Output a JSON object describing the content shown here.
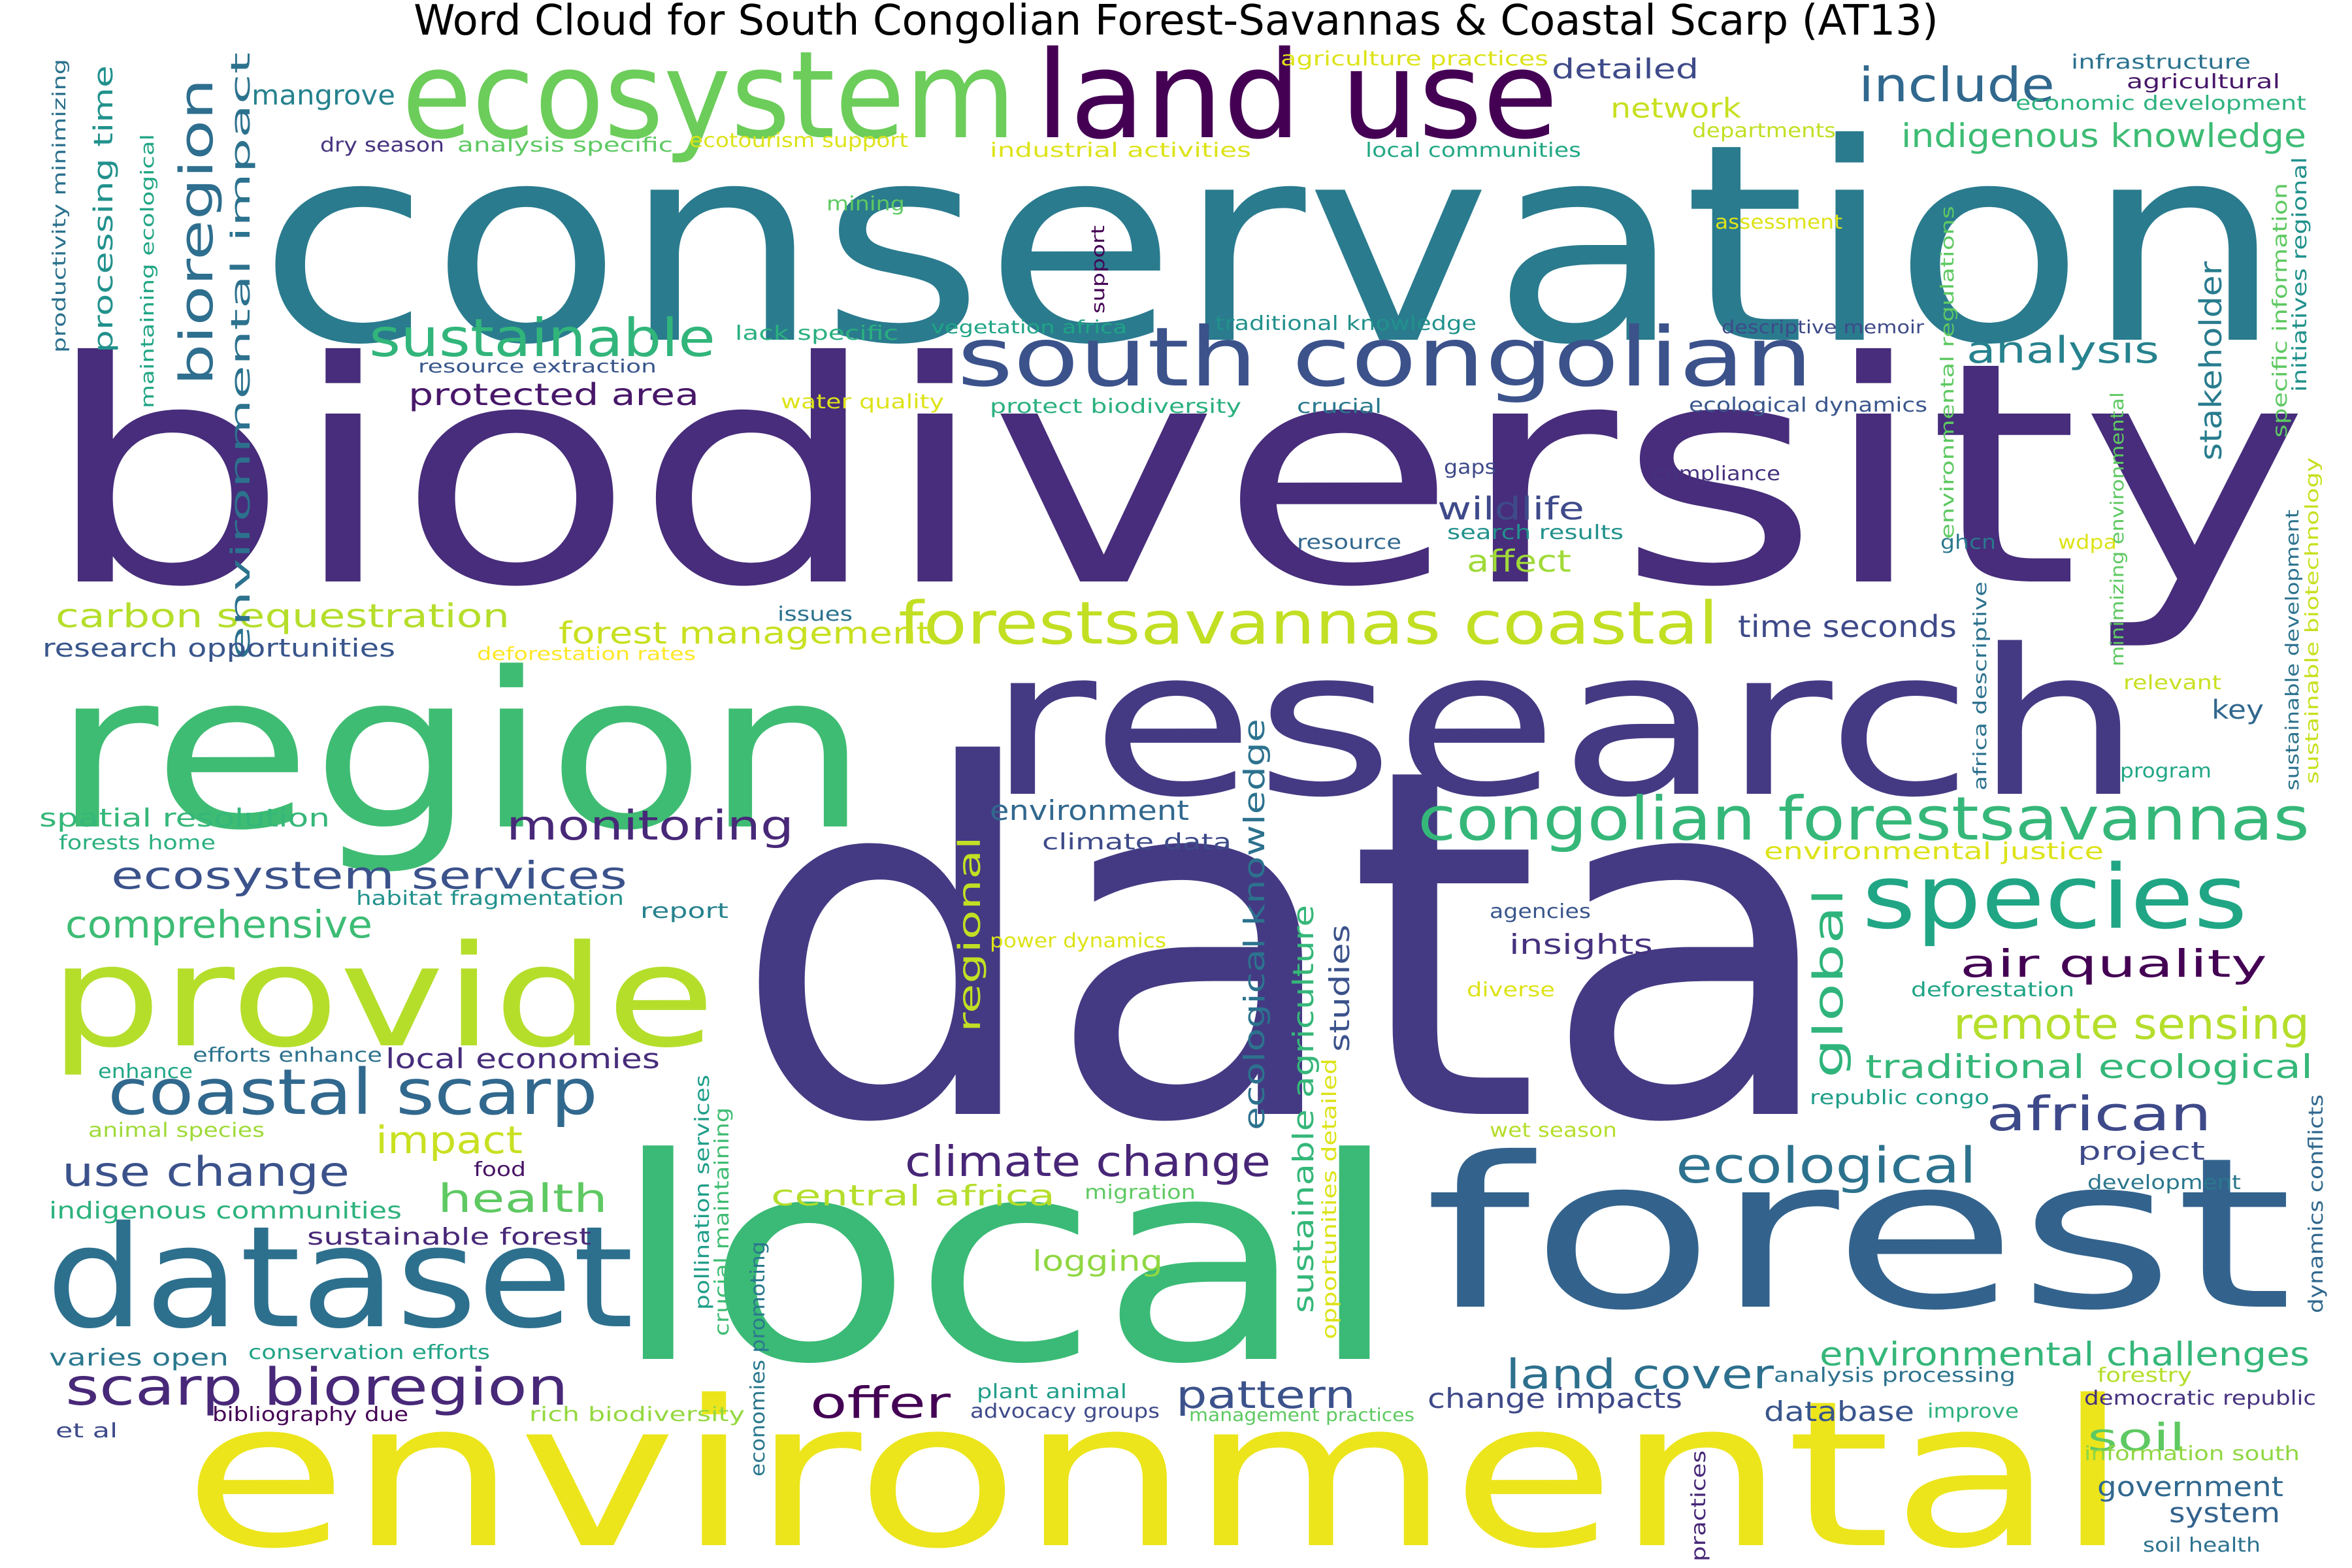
{
  "title": "Word Cloud for South Congolian Forest-Savannas & Coastal Scarp (AT13)",
  "words": [
    {
      "text": "conservation",
      "color": "#2a7b8e"
    },
    {
      "text": "biodiversity",
      "color": "#472d7b"
    },
    {
      "text": "data",
      "color": "#443a83"
    },
    {
      "text": "region",
      "color": "#3fbc73"
    },
    {
      "text": "research",
      "color": "#443a83"
    },
    {
      "text": "local",
      "color": "#3aba76"
    },
    {
      "text": "forest",
      "color": "#33638d"
    },
    {
      "text": "environmental",
      "color": "#ece51b"
    },
    {
      "text": "ecosystem",
      "color": "#6ccd5a"
    },
    {
      "text": "land use",
      "color": "#440154"
    },
    {
      "text": "provide",
      "color": "#b5de2b"
    },
    {
      "text": "dataset",
      "color": "#2d708e"
    },
    {
      "text": "south congolian",
      "color": "#3b528b"
    },
    {
      "text": "species",
      "color": "#21a685"
    },
    {
      "text": "forestsavannas coastal",
      "color": "#c2df23"
    },
    {
      "text": "congolian forestsavannas",
      "color": "#35b779"
    },
    {
      "text": "coastal scarp",
      "color": "#31688e"
    },
    {
      "text": "scarp bioregion",
      "color": "#482878"
    },
    {
      "text": "bioregion",
      "color": "#2e6e8e"
    },
    {
      "text": "sustainable",
      "color": "#31b57b"
    },
    {
      "text": "include",
      "color": "#31688e"
    },
    {
      "text": "ecological",
      "color": "#2c728e"
    },
    {
      "text": "african",
      "color": "#3e4989"
    },
    {
      "text": "remote sensing",
      "color": "#b5de2b"
    },
    {
      "text": "climate change",
      "color": "#482677"
    },
    {
      "text": "monitoring",
      "color": "#482878"
    },
    {
      "text": "ecosystem services",
      "color": "#3b528b"
    },
    {
      "text": "comprehensive",
      "color": "#3dbc74"
    },
    {
      "text": "use change",
      "color": "#3b528b"
    },
    {
      "text": "land cover",
      "color": "#2d708e"
    },
    {
      "text": "environmental challenges",
      "color": "#35b779"
    },
    {
      "text": "offer",
      "color": "#440154"
    },
    {
      "text": "pattern",
      "color": "#3b528b"
    },
    {
      "text": "air quality",
      "color": "#440154"
    },
    {
      "text": "traditional ecological",
      "color": "#35b779"
    },
    {
      "text": "global",
      "color": "#2fb47c"
    },
    {
      "text": "health",
      "color": "#5ec962"
    },
    {
      "text": "impact",
      "color": "#c8e020"
    },
    {
      "text": "soil",
      "color": "#5ec962"
    },
    {
      "text": "government",
      "color": "#31688e"
    },
    {
      "text": "system",
      "color": "#33638d"
    },
    {
      "text": "indigenous knowledge",
      "color": "#3dbc74"
    },
    {
      "text": "analysis",
      "color": "#26828e"
    },
    {
      "text": "stakeholder",
      "color": "#287c8e"
    },
    {
      "text": "carbon sequestration",
      "color": "#b5de2b"
    },
    {
      "text": "forest management",
      "color": "#c8e020"
    },
    {
      "text": "protected area",
      "color": "#481769"
    },
    {
      "text": "wildlife",
      "color": "#3e4a89"
    },
    {
      "text": "affect",
      "color": "#a0da39"
    },
    {
      "text": "time seconds",
      "color": "#3e4a89"
    },
    {
      "text": "processing time",
      "color": "#21918c"
    },
    {
      "text": "environmental impact",
      "color": "#2c728e"
    },
    {
      "text": "mangrove",
      "color": "#26828e"
    },
    {
      "text": "detailed",
      "color": "#3e4a89"
    },
    {
      "text": "network",
      "color": "#c8e020"
    },
    {
      "text": "ecological knowledge",
      "color": "#2c728e"
    },
    {
      "text": "sustainable agriculture",
      "color": "#35b779"
    },
    {
      "text": "studies",
      "color": "#3b528b"
    },
    {
      "text": "regional",
      "color": "#c2df23"
    },
    {
      "text": "environment",
      "color": "#31688e"
    },
    {
      "text": "insights",
      "color": "#46327e"
    },
    {
      "text": "local economies",
      "color": "#472d7b"
    },
    {
      "text": "central africa",
      "color": "#b5de2b"
    },
    {
      "text": "logging",
      "color": "#90d743"
    },
    {
      "text": "database",
      "color": "#39568c"
    },
    {
      "text": "change impacts",
      "color": "#3e4a89"
    },
    {
      "text": "research opportunities",
      "color": "#39568c"
    },
    {
      "text": "spatial resolution",
      "color": "#35b779"
    },
    {
      "text": "key",
      "color": "#31688e"
    },
    {
      "text": "project",
      "color": "#3e4a89"
    },
    {
      "text": "indigenous communities",
      "color": "#2db27d"
    },
    {
      "text": "sustainable forest",
      "color": "#482878"
    },
    {
      "text": "varies open",
      "color": "#2a788e"
    },
    {
      "text": "bibliography due",
      "color": "#440154"
    },
    {
      "text": "et al",
      "color": "#3e4a89"
    },
    {
      "text": "efforts enhance",
      "color": "#2c728e"
    },
    {
      "text": "enhance",
      "color": "#21a685"
    },
    {
      "text": "animal species",
      "color": "#a0da39"
    },
    {
      "text": "food",
      "color": "#471365"
    },
    {
      "text": "forests home",
      "color": "#2ab07f"
    },
    {
      "text": "habitat fragmentation",
      "color": "#21918c"
    },
    {
      "text": "report",
      "color": "#26828e"
    },
    {
      "text": "climate data",
      "color": "#3e4a89"
    },
    {
      "text": "power dynamics",
      "color": "#dde318"
    },
    {
      "text": "diverse",
      "color": "#dde318"
    },
    {
      "text": "agencies",
      "color": "#39568c"
    },
    {
      "text": "deforestation",
      "color": "#20a486"
    },
    {
      "text": "environmental justice",
      "color": "#dde318"
    },
    {
      "text": "republic congo",
      "color": "#1f9e89"
    },
    {
      "text": "wet season",
      "color": "#b5de2b"
    },
    {
      "text": "migration",
      "color": "#5ec962"
    },
    {
      "text": "development",
      "color": "#2a788e"
    },
    {
      "text": "conservation efforts",
      "color": "#20a386"
    },
    {
      "text": "rich biodiversity",
      "color": "#95d840"
    },
    {
      "text": "plant animal",
      "color": "#1f9e89"
    },
    {
      "text": "advocacy groups",
      "color": "#3e4a89"
    },
    {
      "text": "management practices",
      "color": "#5ec962"
    },
    {
      "text": "analysis processing",
      "color": "#2c728e"
    },
    {
      "text": "forestry",
      "color": "#b5de2b"
    },
    {
      "text": "democratic republic",
      "color": "#46327e"
    },
    {
      "text": "improve",
      "color": "#2db27d"
    },
    {
      "text": "information south",
      "color": "#90d743"
    },
    {
      "text": "soil health",
      "color": "#2c728e"
    },
    {
      "text": "practices",
      "color": "#482878"
    },
    {
      "text": "economies promoting",
      "color": "#2a788e"
    },
    {
      "text": "pollination services",
      "color": "#1f9e89"
    },
    {
      "text": "crucial maintaining",
      "color": "#3fbc73"
    },
    {
      "text": "opportunities detailed",
      "color": "#dde318"
    },
    {
      "text": "dynamics conflicts",
      "color": "#31688e"
    },
    {
      "text": "productivity minimizing",
      "color": "#2c728e"
    },
    {
      "text": "maintaining ecological",
      "color": "#21a685"
    },
    {
      "text": "dry season",
      "color": "#46327e"
    },
    {
      "text": "analysis specific",
      "color": "#5ec962"
    },
    {
      "text": "ecotourism support",
      "color": "#dde318"
    },
    {
      "text": "industrial activities",
      "color": "#dde318"
    },
    {
      "text": "local communities",
      "color": "#22a884"
    },
    {
      "text": "departments",
      "color": "#c2df23"
    },
    {
      "text": "agriculture practices",
      "color": "#dde318"
    },
    {
      "text": "infrastructure",
      "color": "#2c728e"
    },
    {
      "text": "agricultural",
      "color": "#481769"
    },
    {
      "text": "economic development",
      "color": "#2db27d"
    },
    {
      "text": "mining",
      "color": "#5ec962"
    },
    {
      "text": "assessment",
      "color": "#dde318"
    },
    {
      "text": "support",
      "color": "#440154"
    },
    {
      "text": "lack specific",
      "color": "#2ab07f"
    },
    {
      "text": "vegetation africa",
      "color": "#20a486"
    },
    {
      "text": "traditional knowledge",
      "color": "#21918c"
    },
    {
      "text": "descriptive memoir",
      "color": "#3e4a89"
    },
    {
      "text": "resource extraction",
      "color": "#39568c"
    },
    {
      "text": "water quality",
      "color": "#dde318"
    },
    {
      "text": "protect biodiversity",
      "color": "#2ab07f"
    },
    {
      "text": "crucial",
      "color": "#2a788e"
    },
    {
      "text": "ecological dynamics",
      "color": "#39568c"
    },
    {
      "text": "environmental regulations",
      "color": "#5ec962"
    },
    {
      "text": "specific information",
      "color": "#5ec962"
    },
    {
      "text": "initiatives regional",
      "color": "#21918c"
    },
    {
      "text": "sustainable biotechnology",
      "color": "#c8e020"
    },
    {
      "text": "sustainable development",
      "color": "#2c728e"
    },
    {
      "text": "gaps",
      "color": "#3e4a89"
    },
    {
      "text": "compliance",
      "color": "#46327e"
    },
    {
      "text": "resource",
      "color": "#31688e"
    },
    {
      "text": "search results",
      "color": "#21918c"
    },
    {
      "text": "ghcn",
      "color": "#2a788e"
    },
    {
      "text": "wdpa",
      "color": "#dde318"
    },
    {
      "text": "minimizing environmental",
      "color": "#5ec962"
    },
    {
      "text": "africa descriptive",
      "color": "#2c728e"
    },
    {
      "text": "relevant",
      "color": "#c8e020"
    },
    {
      "text": "program",
      "color": "#21a685"
    },
    {
      "text": "issues",
      "color": "#2c728e"
    },
    {
      "text": "deforestation rates",
      "color": "#fde725"
    }
  ]
}
